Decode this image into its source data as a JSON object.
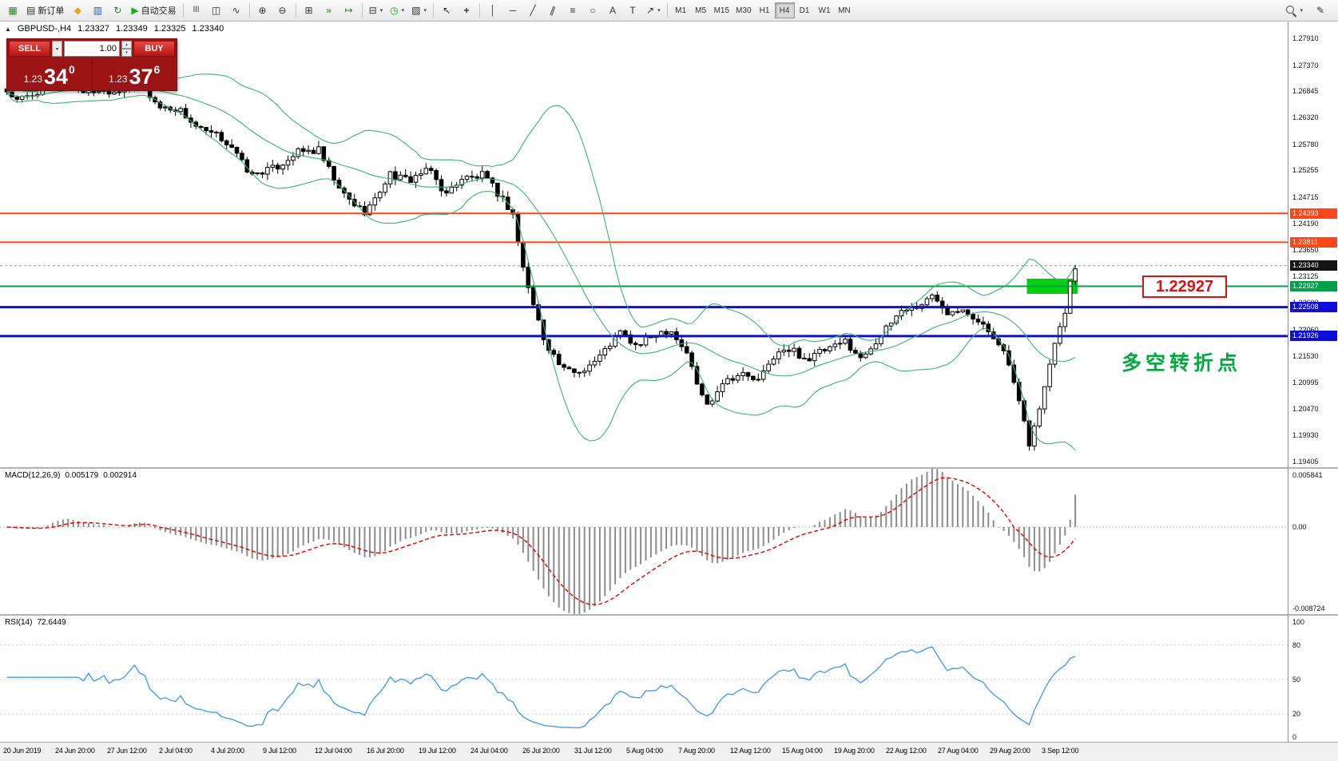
{
  "icon_glyphs": {
    "terminal": "▦",
    "new_order": "▤",
    "metaeditor": "◆",
    "market_watch": "▥",
    "refresh": "↻",
    "play": "▶",
    "bar_chart": "ǀǀǀ",
    "candlestick": "◫",
    "line_chart": "∿",
    "zoom_in": "⊕",
    "zoom_out": "⊖",
    "tile_windows": "⊞",
    "auto_scroll": "»",
    "chart_shift": "↦",
    "new_chart": "⊟",
    "periods_clock": "◷",
    "templates": "▧",
    "cursor": "↖",
    "crosshair": "+",
    "vertical_line": "│",
    "horizontal_line": "─",
    "trendline": "╱",
    "channel": "∥",
    "fibonacci": "≡",
    "shapes": "○",
    "text_a": "A",
    "text_label": "T",
    "arrows": "↗",
    "compose": "✎",
    "caret_down": "▾",
    "caret_up": "▴",
    "collapse": "▲"
  },
  "toolbar": {
    "new_order_label": "新订单",
    "autotrading_label": "自动交易",
    "timeframes": [
      "M1",
      "M5",
      "M15",
      "M30",
      "H1",
      "H4",
      "D1",
      "W1",
      "MN"
    ],
    "active_timeframe": "H4"
  },
  "chart": {
    "header": {
      "symbol": "GBPUSD-,H4",
      "open": "1.23327",
      "high": "1.23349",
      "low": "1.23325",
      "close": "1.23340"
    },
    "trade_panel": {
      "sell_label": "SELL",
      "buy_label": "BUY",
      "volume": "1.00",
      "sell_price": {
        "prefix": "1.23",
        "big": "34",
        "sup": "0"
      },
      "buy_price": {
        "prefix": "1.23",
        "big": "37",
        "sup": "6"
      }
    },
    "annotations": {
      "price_flag": "1.22927",
      "turning_point": "多空转折点"
    },
    "current_price": {
      "value": 1.2334,
      "label": "1.23340"
    },
    "y_ticks": [
      1.2791,
      1.2737,
      1.26845,
      1.2632,
      1.2578,
      1.25255,
      1.24715,
      1.2419,
      1.2365,
      1.23125,
      1.226,
      1.2206,
      1.2153,
      1.20995,
      1.2047,
      1.1993,
      1.19405
    ],
    "hlines": [
      {
        "price": 1.24393,
        "color": "#ff4614",
        "width": 2
      },
      {
        "price": 1.23811,
        "color": "#ff4614",
        "width": 2
      },
      {
        "price": 1.22927,
        "color": "#00a14a",
        "width": 2
      },
      {
        "price": 1.22508,
        "color": "#0d0de0",
        "width": 3
      },
      {
        "price": 1.21926,
        "color": "#0d0de0",
        "width": 3
      }
    ],
    "price_labels": [
      {
        "text": "1.24393",
        "price": 1.24393,
        "color": "#ff4614"
      },
      {
        "text": "1.23811",
        "price": 1.23811,
        "color": "#ff4614"
      },
      {
        "text": "1.23340",
        "price": 1.2334,
        "color": "#141414"
      },
      {
        "text": "1.22927",
        "price": 1.22927,
        "color": "#00a14a"
      },
      {
        "text": "1.22508",
        "price": 1.22508,
        "color": "#0d0de0"
      },
      {
        "text": "1.21926",
        "price": 1.21926,
        "color": "#0d0de0"
      }
    ],
    "highlight_rect": {
      "price": 1.22927,
      "bar_start": 200,
      "bar_end": 209,
      "color": "#00d20a"
    }
  },
  "macd": {
    "name": "MACD(12,26,9)",
    "value": "0.005179",
    "signal": "0.002914",
    "scale_top": "0.005841",
    "scale_zero": "0.00",
    "scale_bottom": "-0.008724",
    "top_value": 0.005841,
    "bottom_value": -0.008724,
    "fast": 12,
    "slow": 26,
    "signal_period": 9
  },
  "rsi": {
    "name": "RSI(14)",
    "value": "72.6449",
    "period": 14,
    "levels": [
      100,
      80,
      50,
      20,
      0
    ],
    "level_lines": [
      80,
      50,
      20
    ]
  },
  "time_axis": {
    "labels": [
      "20 Jun 2019",
      "24 Jun 20:00",
      "27 Jun 12:00",
      "2 Jul 04:00",
      "4 Jul 20:00",
      "9 Jul 12:00",
      "12 Jul 04:00",
      "16 Jul 20:00",
      "19 Jul 12:00",
      "24 Jul 04:00",
      "26 Jul 20:00",
      "31 Jul 12:00",
      "5 Aug 04:00",
      "7 Aug 20:00",
      "12 Aug 12:00",
      "15 Aug 04:00",
      "19 Aug 20:00",
      "22 Aug 12:00",
      "27 Aug 04:00",
      "29 Aug 20:00",
      "3 Sep 12:00"
    ]
  },
  "chart_data": {
    "type": "candlestick",
    "symbol": "GBPUSD-",
    "timeframe": "H4",
    "bars": 210,
    "ylim": [
      1.19292,
      1.28248
    ],
    "price_path": [
      [
        0,
        1.2685
      ],
      [
        2,
        1.266
      ],
      [
        6,
        1.2688
      ],
      [
        11,
        1.27
      ],
      [
        17,
        1.2682
      ],
      [
        24,
        1.2695
      ],
      [
        27,
        1.2688
      ],
      [
        30,
        1.2656
      ],
      [
        34,
        1.2642
      ],
      [
        39,
        1.2602
      ],
      [
        44,
        1.2576
      ],
      [
        48,
        1.2512
      ],
      [
        51,
        1.2526
      ],
      [
        56,
        1.2555
      ],
      [
        61,
        1.257
      ],
      [
        65,
        1.2482
      ],
      [
        70,
        1.2446
      ],
      [
        72,
        1.2462
      ],
      [
        75,
        1.252
      ],
      [
        79,
        1.2506
      ],
      [
        83,
        1.2526
      ],
      [
        86,
        1.2478
      ],
      [
        89,
        1.2506
      ],
      [
        93,
        1.252
      ],
      [
        96,
        1.2476
      ],
      [
        99,
        1.244
      ],
      [
        101,
        1.2332
      ],
      [
        103,
        1.2252
      ],
      [
        105,
        1.2186
      ],
      [
        109,
        1.2126
      ],
      [
        112,
        1.2116
      ],
      [
        115,
        1.2146
      ],
      [
        120,
        1.2196
      ],
      [
        123,
        1.2176
      ],
      [
        126,
        1.219
      ],
      [
        130,
        1.2206
      ],
      [
        133,
        1.2162
      ],
      [
        135,
        1.2092
      ],
      [
        137,
        1.2052
      ],
      [
        140,
        1.2106
      ],
      [
        144,
        1.2112
      ],
      [
        147,
        1.2106
      ],
      [
        150,
        1.215
      ],
      [
        154,
        1.2166
      ],
      [
        157,
        1.2146
      ],
      [
        160,
        1.2161
      ],
      [
        164,
        1.2186
      ],
      [
        167,
        1.2142
      ],
      [
        170,
        1.2186
      ],
      [
        175,
        1.2241
      ],
      [
        178,
        1.2256
      ],
      [
        181,
        1.2272
      ],
      [
        184,
        1.2241
      ],
      [
        187,
        1.2256
      ],
      [
        190,
        1.2216
      ],
      [
        194,
        1.2186
      ],
      [
        196,
        1.2136
      ],
      [
        198,
        1.2052
      ],
      [
        200,
        1.1976
      ],
      [
        201,
        1.2012
      ],
      [
        203,
        1.2092
      ],
      [
        205,
        1.2182
      ],
      [
        207,
        1.2242
      ],
      [
        208,
        1.2302
      ],
      [
        209,
        1.2334
      ]
    ],
    "bollinger": {
      "period": 20,
      "deviation": 2,
      "color": "#3cb371"
    }
  },
  "colors": {
    "candle_up_fill": "#ffffff",
    "candle_down_fill": "#000000",
    "candle_border": "#000000",
    "macd_histogram": "#8c8c8c",
    "macd_signal": "#e00000",
    "rsi_line": "#4a9ede",
    "annotation_red": "#dd1111",
    "annotation_green": "#00aa3c"
  }
}
